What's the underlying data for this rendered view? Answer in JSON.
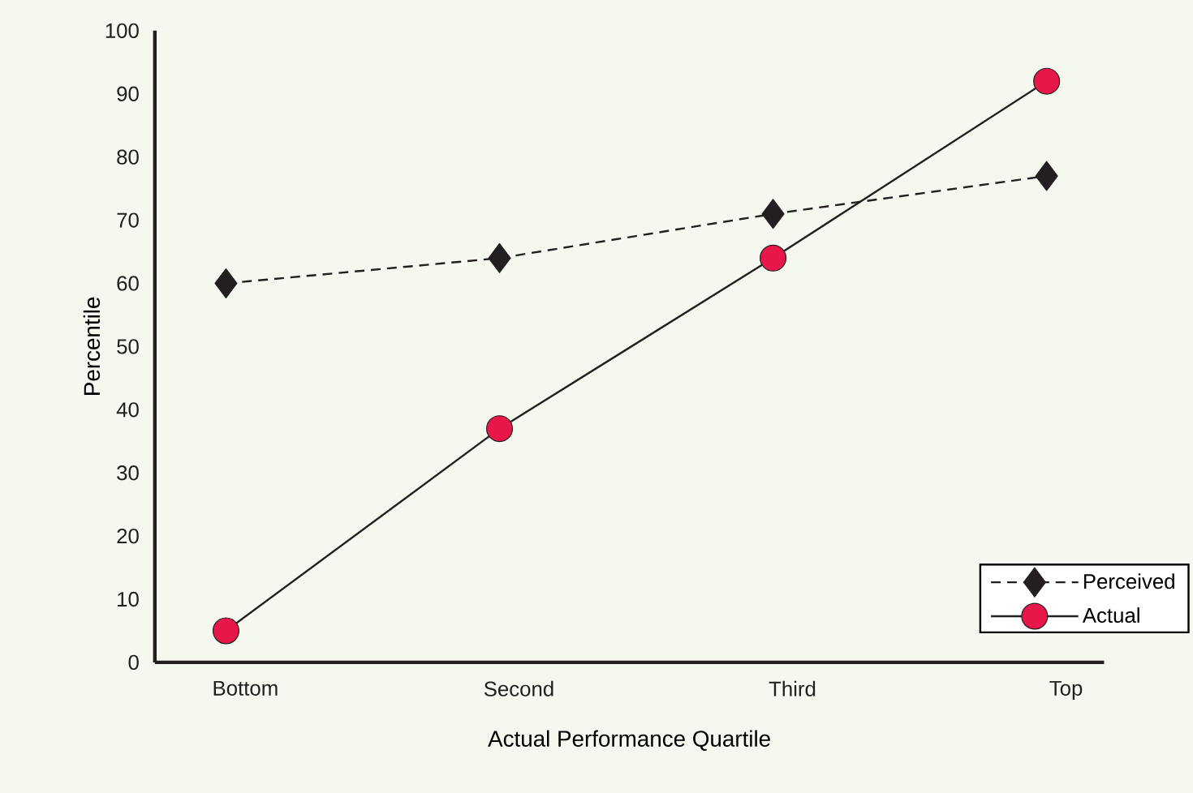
{
  "chart_data": {
    "type": "line",
    "xlabel": "Actual Performance Quartile",
    "ylabel": "Percentile",
    "categories": [
      "Bottom",
      "Second",
      "Third",
      "Top"
    ],
    "series": [
      {
        "name": "Perceived",
        "color": "#231f20",
        "marker": "diamond",
        "line_style": "dashed",
        "values": [
          60,
          64,
          71,
          77
        ]
      },
      {
        "name": "Actual",
        "color": "#e8174a",
        "marker": "circle",
        "line_style": "solid",
        "values": [
          5,
          37,
          64,
          92
        ]
      }
    ],
    "ylim": [
      0,
      100
    ],
    "yticks": [
      0,
      10,
      20,
      30,
      40,
      50,
      60,
      70,
      80,
      90,
      100
    ],
    "grid": false,
    "legend": "bottom right"
  }
}
